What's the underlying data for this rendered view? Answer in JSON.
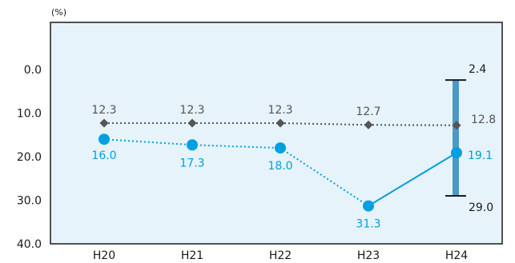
{
  "chart_data": {
    "type": "line",
    "unit_label": "(%)",
    "categories": [
      "H20",
      "H21",
      "H22",
      "H23",
      "H24"
    ],
    "ylim": [
      0,
      40
    ],
    "y_inverted": true,
    "yticks": [
      "0.0",
      "10.0",
      "20.0",
      "30.0",
      "40.0"
    ],
    "yticks_values": [
      0,
      10,
      20,
      30,
      40
    ],
    "grid": false,
    "series": [
      {
        "values": [
          12.3,
          12.3,
          12.3,
          12.7,
          12.8
        ],
        "labels": [
          "12.3",
          "12.3",
          "12.3",
          "12.7",
          "12.8"
        ],
        "marker": "diamond",
        "color": "#555555",
        "line_style": "dotted"
      },
      {
        "values": [
          16.0,
          17.3,
          18.0,
          31.3,
          19.1
        ],
        "labels": [
          "16.0",
          "17.3",
          "18.0",
          "31.3",
          "19.1"
        ],
        "marker": "circle",
        "color": "#00a0e0",
        "line_style": "dotted-then-solid"
      }
    ],
    "range_bar": {
      "category": "H24",
      "low": 2.4,
      "high": 29.0,
      "low_label": "2.4",
      "high_label": "29.0",
      "color": "#4a9ac4"
    },
    "colors": {
      "plot_bg": "#e6f3fa",
      "plot_border": "#1a1a1a",
      "axis_text": "#1a1a1a",
      "series1_label": "#555555",
      "series2_label": "#00a0e0"
    }
  }
}
